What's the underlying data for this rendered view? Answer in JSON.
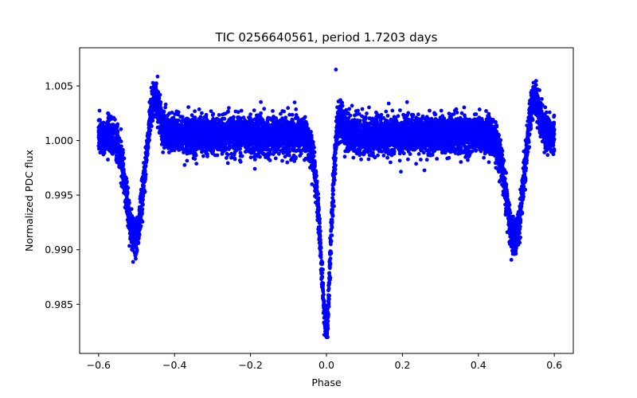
{
  "chart_data": {
    "type": "scatter",
    "title": "TIC 0256640561, period 1.7203 days",
    "xlabel": "Phase",
    "ylabel": "Normalized PDC flux",
    "xlim": [
      -0.65,
      0.65
    ],
    "ylim": [
      0.9805,
      1.0085
    ],
    "xticks": [
      -0.6,
      -0.4,
      -0.2,
      0.0,
      0.2,
      0.4,
      0.6
    ],
    "xtick_labels": [
      "−0.6",
      "−0.4",
      "−0.2",
      "0.0",
      "0.2",
      "0.4",
      "0.6"
    ],
    "yticks": [
      0.985,
      0.99,
      0.995,
      1.0,
      1.005
    ],
    "ytick_labels": [
      "0.985",
      "0.990",
      "0.995",
      "1.000",
      "1.005"
    ],
    "grid": false,
    "series": [
      {
        "color": "#0000ff",
        "marker": "circle",
        "x_range": [
          -0.6,
          0.6
        ],
        "baseline": 1.0005,
        "scatter_sd": 0.0008,
        "primary_eclipse": {
          "phase": 0.0,
          "min_flux": 0.9818,
          "half_width": 0.035
        },
        "secondary_eclipses": [
          {
            "phase": -0.505,
            "min_flux": 0.991,
            "half_width": 0.045
          },
          {
            "phase": 0.495,
            "min_flux": 0.991,
            "half_width": 0.045
          }
        ],
        "brightenings": [
          {
            "phase": -0.455,
            "peak_flux": 1.0055
          },
          {
            "phase": 0.025,
            "peak_flux": 1.0068
          },
          {
            "phase": 0.545,
            "peak_flux": 1.0055
          }
        ],
        "sample_points": [
          [
            -0.6,
            1.0012
          ],
          [
            -0.55,
            1.0015
          ],
          [
            -0.52,
            0.9945
          ],
          [
            -0.505,
            0.991
          ],
          [
            -0.48,
            0.9955
          ],
          [
            -0.455,
            1.0052
          ],
          [
            -0.4,
            1.0008
          ],
          [
            -0.2,
            1.001
          ],
          [
            -0.05,
            1.0004
          ],
          [
            -0.02,
            0.992
          ],
          [
            0.0,
            0.982
          ],
          [
            0.02,
            0.994
          ],
          [
            0.025,
            1.0065
          ],
          [
            0.05,
            1.0008
          ],
          [
            0.2,
            1.0012
          ],
          [
            0.4,
            1.0006
          ],
          [
            0.47,
            0.996
          ],
          [
            0.495,
            0.991
          ],
          [
            0.52,
            0.998
          ],
          [
            0.545,
            1.0053
          ],
          [
            0.6,
            1.001
          ]
        ]
      }
    ]
  }
}
